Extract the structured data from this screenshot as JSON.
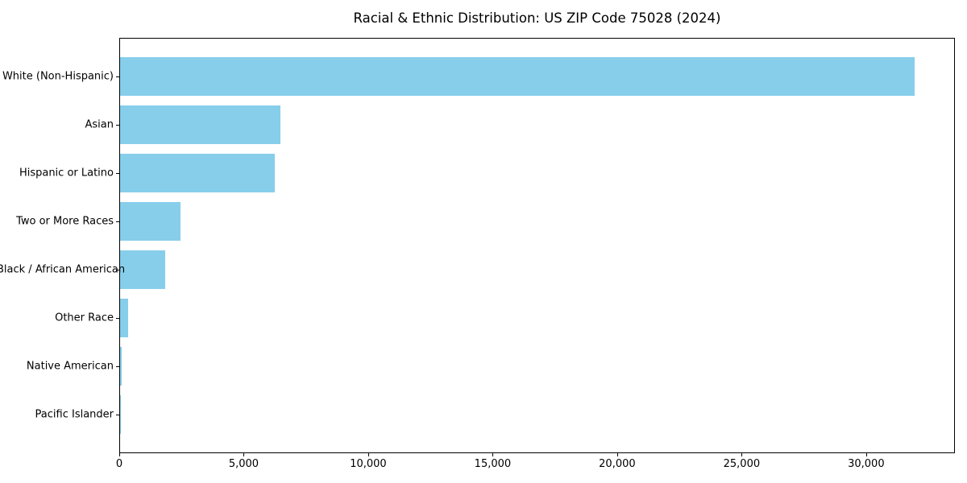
{
  "chart_data": {
    "type": "bar",
    "orientation": "horizontal",
    "title": "Racial & Ethnic Distribution: US ZIP Code 75028 (2024)",
    "categories": [
      "White (Non-Hispanic)",
      "Asian",
      "Hispanic or Latino",
      "Two or More Races",
      "Black / African American",
      "Other Race",
      "Native American",
      "Pacific Islander"
    ],
    "values": [
      31900,
      6440,
      6230,
      2440,
      1820,
      310,
      50,
      15
    ],
    "xlabel": "",
    "ylabel": "",
    "xlim": [
      0,
      33500
    ],
    "xticks": [
      0,
      5000,
      10000,
      15000,
      20000,
      25000,
      30000
    ],
    "grid": false,
    "legend_position": "none",
    "bar_color": "#87CEEB",
    "axis_color": "#000000",
    "background_color": "#FFFFFF"
  }
}
